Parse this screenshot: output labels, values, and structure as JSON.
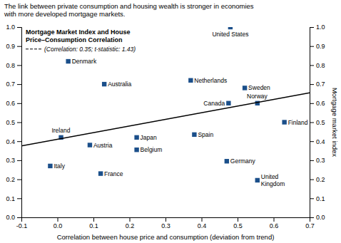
{
  "chart_data": {
    "type": "scatter",
    "caption": "The link between private consumption and housing wealth is stronger in economies\nwith more developed mortgage markets.",
    "title": "Mortgage Market Index and House\nPrice–Consumption Correlation",
    "subtitle": "(Correlation: 0.35; t-statistic: 1.43)",
    "xlabel": "Correlation between house price and consumption (deviation from trend)",
    "y2label": "Mortgage market index",
    "xlim": [
      -0.1,
      0.7
    ],
    "ylim": [
      0.0,
      1.0
    ],
    "y2lim": [
      0.0,
      1.0
    ],
    "xticks": [
      -0.1,
      {
        "value": 0.0,
        "label": "0.0"
      },
      0.1,
      0.2,
      0.3,
      0.4,
      0.5,
      0.6,
      0.7
    ],
    "yticks": [
      {
        "value": 0.0,
        "label": "0.0"
      },
      0.1,
      0.2,
      0.3,
      0.4,
      0.5,
      0.6,
      0.7,
      0.8,
      0.9,
      {
        "value": 1.0,
        "label": "1.0"
      }
    ],
    "y2ticks": [
      {
        "value": 0.0,
        "label": "0.0"
      },
      0.1,
      0.2,
      0.3,
      0.4,
      0.5,
      0.6,
      0.7,
      0.8,
      0.9,
      {
        "value": 1.0,
        "label": "1.0"
      }
    ],
    "grid": false,
    "series": [
      {
        "type": "scatter",
        "marker": "square",
        "color": "#1B4F8A",
        "x": [
          0.03,
          0.13,
          0.37,
          0.48,
          0.52,
          0.475,
          0.555,
          0.63,
          0.01,
          0.09,
          0.22,
          0.22,
          0.38,
          0.47,
          -0.02,
          0.12,
          0.555
        ],
        "values": [
          0.82,
          0.7,
          0.72,
          1.0,
          0.68,
          0.6,
          0.6,
          0.5,
          0.42,
          0.38,
          0.42,
          0.355,
          0.435,
          0.295,
          0.27,
          0.23,
          0.195
        ],
        "point_labels": [
          "Denmark",
          "Australia",
          "Netherlands",
          "United States",
          "Sweden",
          "Canada",
          "Norway",
          "Finland",
          "Ireland",
          "Austria",
          "Japan",
          "Belgium",
          "Spain",
          "Germany",
          "Italy",
          "France",
          "United\nKingdom"
        ]
      },
      {
        "type": "line",
        "color": "#000000",
        "x": [
          -0.1,
          0.7
        ],
        "values": [
          0.375,
          0.655
        ]
      }
    ]
  }
}
